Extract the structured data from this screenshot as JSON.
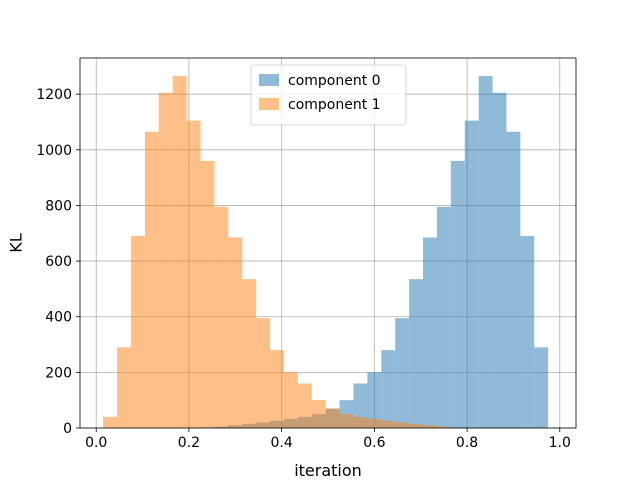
{
  "chart_data": {
    "type": "histogram",
    "title": "",
    "xlabel": "iteration",
    "ylabel": "KL",
    "xlim": [
      -0.035,
      1.035
    ],
    "ylim": [
      0,
      1330
    ],
    "grid": true,
    "legend_position": "top-center",
    "x_ticks": [
      0.0,
      0.2,
      0.4,
      0.6,
      0.8,
      1.0
    ],
    "x_tick_labels": [
      "0.0",
      "0.2",
      "0.4",
      "0.6",
      "0.8",
      "1.0"
    ],
    "y_ticks": [
      0,
      200,
      400,
      600,
      800,
      1000,
      1200
    ],
    "y_tick_labels": [
      "0",
      "200",
      "400",
      "600",
      "800",
      "1000",
      "1200"
    ],
    "bin_edges": [
      0.015,
      0.045,
      0.075,
      0.105,
      0.135,
      0.165,
      0.195,
      0.225,
      0.255,
      0.285,
      0.315,
      0.345,
      0.375,
      0.405,
      0.435,
      0.465,
      0.495,
      0.525,
      0.555,
      0.585,
      0.615,
      0.645,
      0.675,
      0.705,
      0.735,
      0.765,
      0.795,
      0.825,
      0.855,
      0.885,
      0.915,
      0.945,
      0.975
    ],
    "series": [
      {
        "name": "component 0",
        "color": "#1f77b4",
        "opacity": 0.5,
        "values": [
          0,
          0,
          0,
          0,
          0,
          0,
          0,
          2,
          5,
          10,
          15,
          20,
          26,
          33,
          40,
          50,
          70,
          100,
          160,
          200,
          280,
          395,
          535,
          685,
          795,
          960,
          1105,
          1265,
          1205,
          1065,
          690,
          290,
          40
        ]
      },
      {
        "name": "component 1",
        "color": "#ff7f0e",
        "opacity": 0.5,
        "values": [
          40,
          290,
          690,
          1065,
          1205,
          1265,
          1105,
          960,
          795,
          685,
          535,
          395,
          280,
          200,
          160,
          100,
          70,
          50,
          40,
          33,
          26,
          20,
          15,
          10,
          5,
          2,
          0,
          0,
          0,
          0,
          0,
          0,
          0
        ]
      }
    ]
  }
}
